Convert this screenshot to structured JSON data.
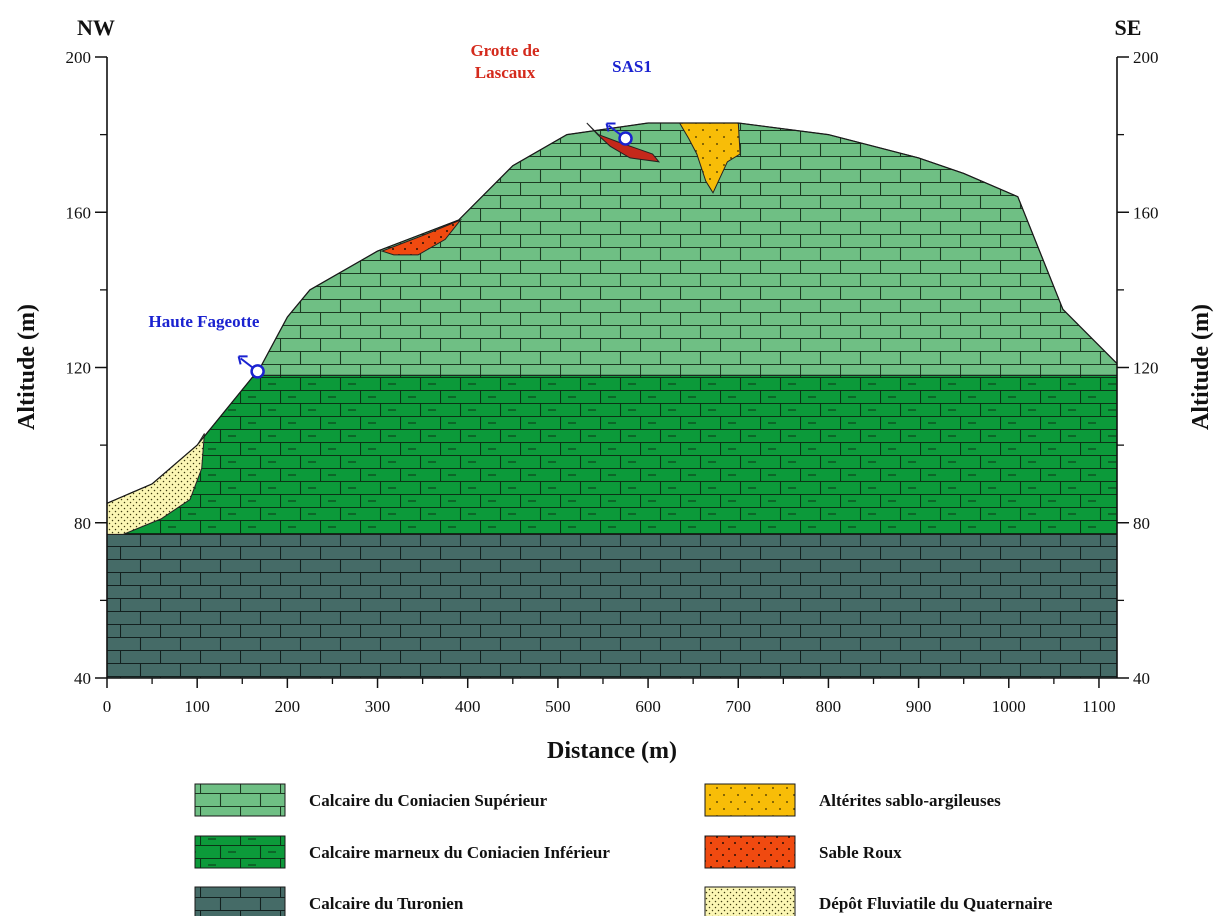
{
  "chart_data": {
    "type": "cross-section",
    "orientation": {
      "left": "NW",
      "right": "SE"
    },
    "x_axis": {
      "label": "Distance (m)",
      "range": [
        0,
        1120
      ],
      "ticks": [
        0,
        100,
        200,
        300,
        400,
        500,
        600,
        700,
        800,
        900,
        1000,
        1100
      ]
    },
    "y_axis": {
      "label": "Altitude (m)",
      "range": [
        40,
        200
      ],
      "ticks": [
        40,
        80,
        120,
        160,
        200
      ]
    },
    "y_axis_right": {
      "label": "Altitude (m)",
      "ticks": [
        40,
        80,
        120,
        160,
        200
      ]
    },
    "surface_profile": [
      [
        0,
        85
      ],
      [
        50,
        90
      ],
      [
        100,
        100
      ],
      [
        170,
        120
      ],
      [
        200,
        133
      ],
      [
        225,
        140
      ],
      [
        300,
        150
      ],
      [
        390,
        158
      ],
      [
        450,
        172
      ],
      [
        510,
        180
      ],
      [
        600,
        183
      ],
      [
        700,
        183
      ],
      [
        800,
        180
      ],
      [
        900,
        174
      ],
      [
        950,
        170
      ],
      [
        1010,
        164
      ],
      [
        1060,
        135
      ],
      [
        1120,
        121
      ]
    ],
    "layers": [
      {
        "name": "Calcaire du Turonien",
        "bottom": 40,
        "top": 77,
        "color": "#456b67",
        "pattern": "brick"
      },
      {
        "name": "Calcaire marneux du Coniacien Inférieur",
        "bottom": 77,
        "top": 118,
        "color": "#0c9a3a",
        "pattern": "marl-brick"
      },
      {
        "name": "Calcaire du Coniacien Supérieur",
        "bottom": 118,
        "top": "surface",
        "color": "#6fbf84",
        "pattern": "brick"
      }
    ],
    "deposits": [
      {
        "name": "Dépôt Fluviatile du Quaternaire",
        "color": "#fbf6b4",
        "pattern": "fine-dots",
        "outline": [
          [
            0,
            77
          ],
          [
            0,
            85
          ],
          [
            50,
            90
          ],
          [
            100,
            100
          ],
          [
            108,
            103
          ],
          [
            105,
            94
          ],
          [
            92,
            86
          ],
          [
            60,
            81
          ],
          [
            18,
            77
          ]
        ]
      },
      {
        "name": "Sable Roux",
        "color": "#f04a10",
        "pattern": "dots",
        "outline": [
          [
            305,
            150
          ],
          [
            350,
            154
          ],
          [
            392,
            158
          ],
          [
            375,
            153
          ],
          [
            345,
            149
          ],
          [
            318,
            149
          ]
        ]
      },
      {
        "name": "Altérites sablo-argileuses",
        "color": "#f8bd08",
        "pattern": "dots",
        "outline": [
          [
            635,
            183
          ],
          [
            700,
            183
          ],
          [
            702,
            175
          ],
          [
            688,
            173
          ],
          [
            680,
            169
          ],
          [
            672,
            165
          ],
          [
            664,
            168
          ],
          [
            654,
            175
          ],
          [
            645,
            179
          ]
        ]
      },
      {
        "name": "Grotte de Lascaux",
        "color": "#c4281b",
        "pattern": "none",
        "outline": [
          [
            532,
            183
          ],
          [
            545,
            180
          ],
          [
            568,
            178
          ],
          [
            605,
            175
          ],
          [
            612,
            173
          ],
          [
            580,
            174
          ],
          [
            558,
            177
          ],
          [
            544,
            180
          ]
        ]
      }
    ],
    "markers": [
      {
        "name": "SAS1",
        "x": 575,
        "y": 179,
        "color": "#1a22d0"
      },
      {
        "name": "Haute Fageotte",
        "x": 167,
        "y": 119,
        "color": "#1a22d0"
      }
    ],
    "annotations": [
      {
        "text": "Grotte de",
        "color": "#d42a1c"
      },
      {
        "text": "Lascaux",
        "color": "#d42a1c"
      },
      {
        "text": "SAS1",
        "color": "#1a22d0"
      },
      {
        "text": "Haute Fageotte",
        "color": "#1a22d0"
      }
    ],
    "legend": {
      "placement": "bottom",
      "items": [
        {
          "label": "Calcaire du Coniacien Supérieur",
          "color": "#6fbf84",
          "pattern": "brick"
        },
        {
          "label": "Altérites sablo-argileuses",
          "color": "#f8bd08",
          "pattern": "dots"
        },
        {
          "label": "Calcaire marneux du Coniacien Inférieur",
          "color": "#0c9a3a",
          "pattern": "marl-brick"
        },
        {
          "label": "Sable Roux",
          "color": "#f04a10",
          "pattern": "dots"
        },
        {
          "label": "Calcaire du Turonien",
          "color": "#456b67",
          "pattern": "brick"
        },
        {
          "label": "Dépôt Fluviatile du Quaternaire",
          "color": "#fbf6b4",
          "pattern": "fine-dots"
        }
      ]
    }
  }
}
